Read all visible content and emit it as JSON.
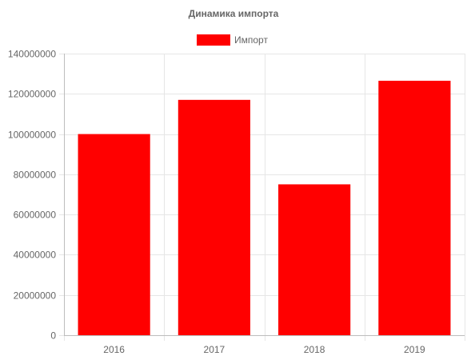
{
  "chart_data": {
    "type": "bar",
    "title": "Динамика импорта",
    "legend": {
      "position": "top",
      "entries": [
        {
          "label": "Импорт",
          "color": "#ff0000"
        }
      ]
    },
    "categories": [
      "2016",
      "2017",
      "2018",
      "2019"
    ],
    "series": [
      {
        "name": "Импорт",
        "color": "#ff0000",
        "values": [
          100000000,
          117000000,
          75000000,
          126500000
        ]
      }
    ],
    "xlabel": "",
    "ylabel": "",
    "ylim": [
      0,
      140000000
    ],
    "yticks": [
      0,
      20000000,
      40000000,
      60000000,
      80000000,
      100000000,
      120000000,
      140000000
    ],
    "ytick_labels": [
      "0",
      "20000000",
      "40000000",
      "60000000",
      "80000000",
      "100000000",
      "120000000",
      "140000000"
    ],
    "grid": true
  }
}
